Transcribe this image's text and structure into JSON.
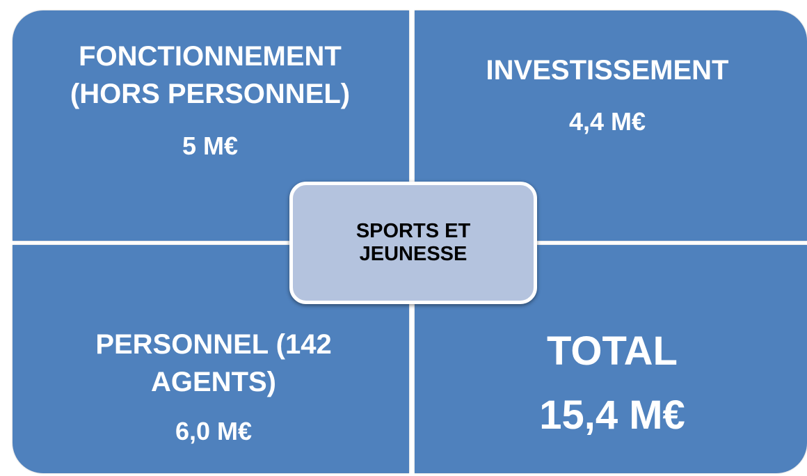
{
  "quadrants": [
    {
      "title": [
        "FONCTIONNEMENT",
        "(HORS PERSONNEL)"
      ],
      "value": "5 M€"
    },
    {
      "title": [
        "INVESTISSEMENT"
      ],
      "value": "4,4 M€"
    },
    {
      "title": [
        "PERSONNEL (142",
        "AGENTS)"
      ],
      "value": "6,0 M€"
    },
    {
      "title": [
        "TOTAL"
      ],
      "value": "15,4 M€"
    }
  ],
  "center": [
    "SPORTS ET",
    "JEUNESSE"
  ]
}
